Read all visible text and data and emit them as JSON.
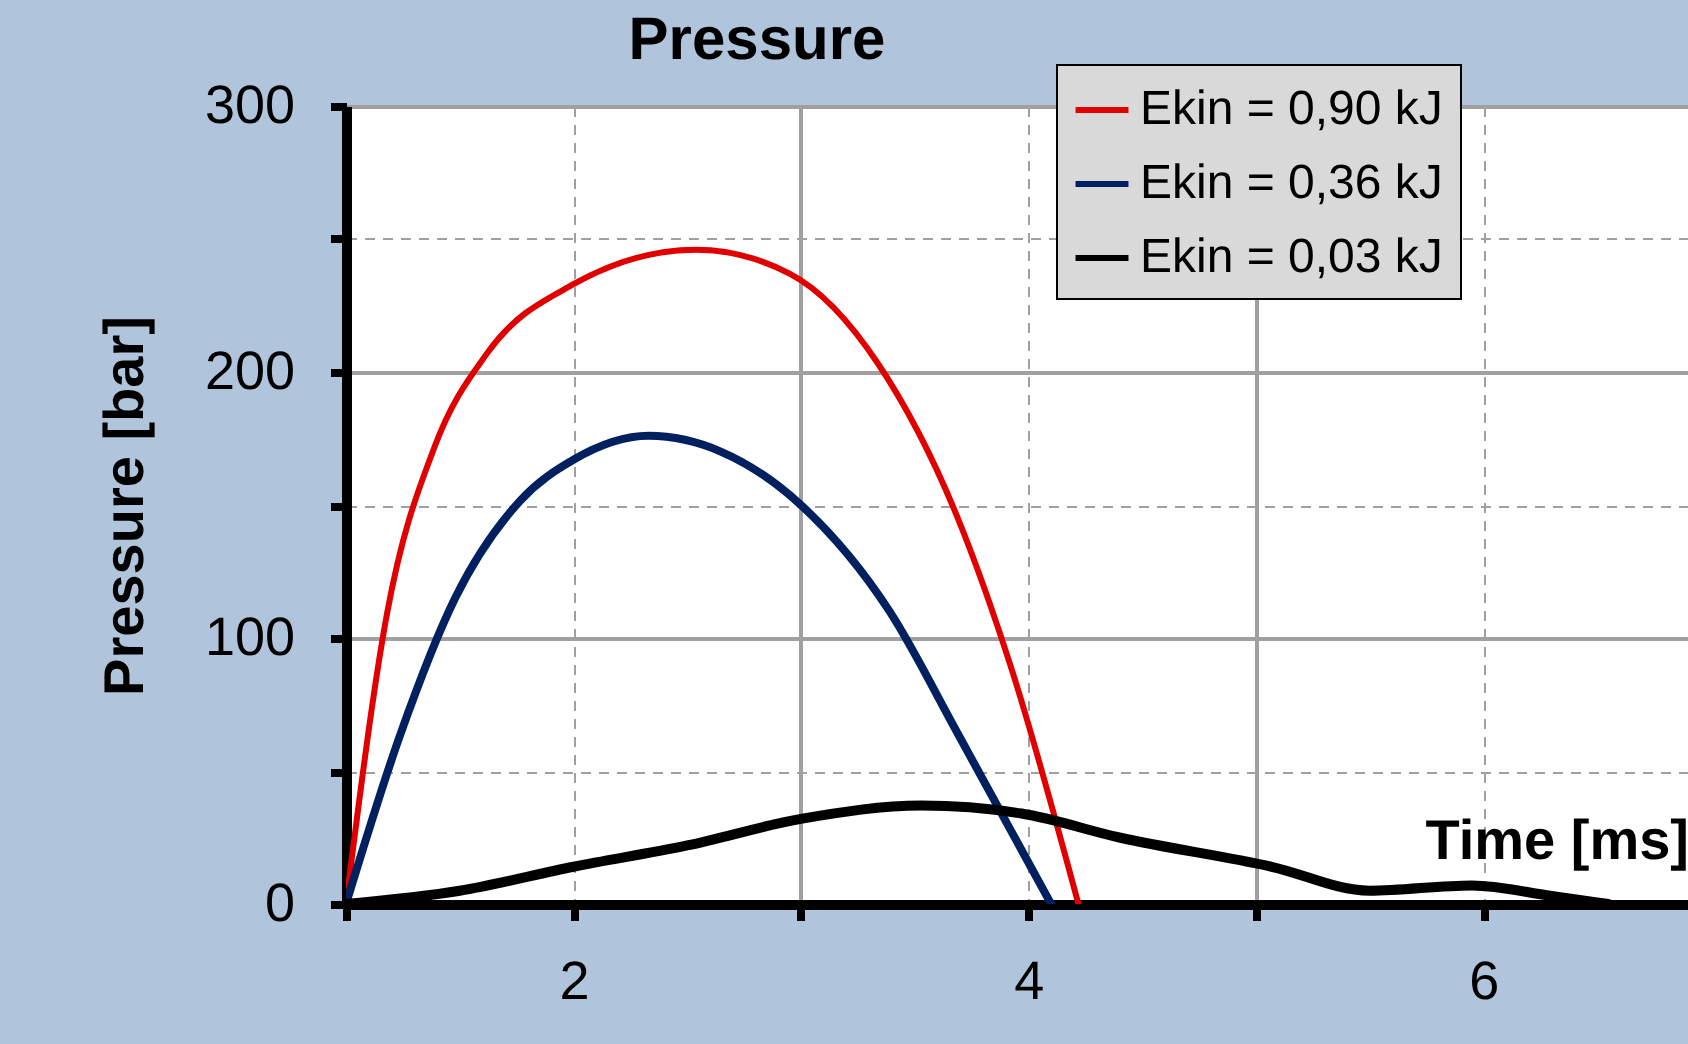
{
  "chart_data": {
    "type": "line",
    "title": "Pressure",
    "xlabel": "Time [ms]",
    "ylabel": "Pressure [bar]",
    "xlim": [
      1,
      6.9
    ],
    "xticks": [
      {
        "value": 1,
        "label": null
      },
      2,
      {
        "value": 3,
        "label": null
      },
      4,
      {
        "value": 5,
        "label": null
      },
      6
    ],
    "ylim": [
      0,
      300
    ],
    "yticks": [
      0,
      {
        "value": 50,
        "label": null
      },
      100,
      {
        "value": 150,
        "label": null
      },
      200,
      {
        "value": 250,
        "label": null
      },
      300
    ],
    "grid": true,
    "legend": "top right",
    "marker": "none",
    "line_style": "solid",
    "series": [
      {
        "name": "Ekin = 0,90 kJ",
        "color": "#e00000",
        "x": [
          1,
          1.18,
          1.39,
          1.62,
          2.0,
          2.54,
          2.95,
          3.34,
          3.69,
          3.92,
          4.22
        ],
        "values": [
          0,
          109,
          172,
          207,
          233,
          246,
          237,
          203,
          145,
          90,
          0
        ]
      },
      {
        "name": "Ekin = 0,36 kJ",
        "color": "#002060",
        "x": [
          1,
          1.24,
          1.48,
          1.77,
          2.0,
          2.33,
          2.65,
          3.0,
          3.39,
          3.69,
          4.1
        ],
        "values": [
          0,
          64,
          115,
          152,
          167,
          176,
          170,
          150,
          110,
          64,
          0
        ]
      },
      {
        "name": "Ekin = 0,03 kJ",
        "color": "#000000",
        "x": [
          1,
          1.5,
          2.0,
          2.5,
          3.0,
          3.53,
          3.97,
          4.4,
          5.07,
          5.5,
          5.95,
          6.3,
          6.55
        ],
        "values": [
          0,
          5,
          14,
          22,
          32,
          37,
          34,
          25,
          14,
          5,
          7,
          3,
          0
        ]
      }
    ]
  }
}
